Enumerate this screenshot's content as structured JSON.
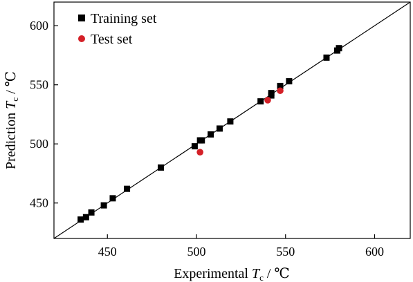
{
  "chart_data": {
    "type": "scatter",
    "xlabel": {
      "prefix": "Experimental ",
      "var": "T",
      "sub": "c",
      "unit": " / ℃"
    },
    "ylabel": {
      "prefix": "Prediction ",
      "var": "T",
      "sub": "c",
      "unit": " / ℃"
    },
    "xlim": [
      420,
      620
    ],
    "ylim": [
      420,
      620
    ],
    "xticks": [
      450,
      500,
      550,
      600
    ],
    "yticks": [
      450,
      500,
      550,
      600
    ],
    "grid": false,
    "legend_position": "top-left",
    "reference_line": "y = x",
    "series": [
      {
        "name": "Training set",
        "marker": "square",
        "color": "#000000",
        "points": [
          [
            435,
            436
          ],
          [
            438,
            438
          ],
          [
            441,
            442
          ],
          [
            448,
            448
          ],
          [
            453,
            454
          ],
          [
            461,
            462
          ],
          [
            480,
            480
          ],
          [
            499,
            498
          ],
          [
            502,
            503
          ],
          [
            503,
            503
          ],
          [
            508,
            508
          ],
          [
            513,
            513
          ],
          [
            519,
            519
          ],
          [
            536,
            536
          ],
          [
            542,
            541
          ],
          [
            542,
            543
          ],
          [
            547,
            549
          ],
          [
            552,
            553
          ],
          [
            573,
            573
          ],
          [
            579,
            579
          ],
          [
            580,
            581
          ]
        ]
      },
      {
        "name": "Test set",
        "marker": "circle",
        "color": "#d42027",
        "points": [
          [
            502,
            493
          ],
          [
            540,
            537
          ],
          [
            547,
            545
          ]
        ]
      }
    ]
  }
}
